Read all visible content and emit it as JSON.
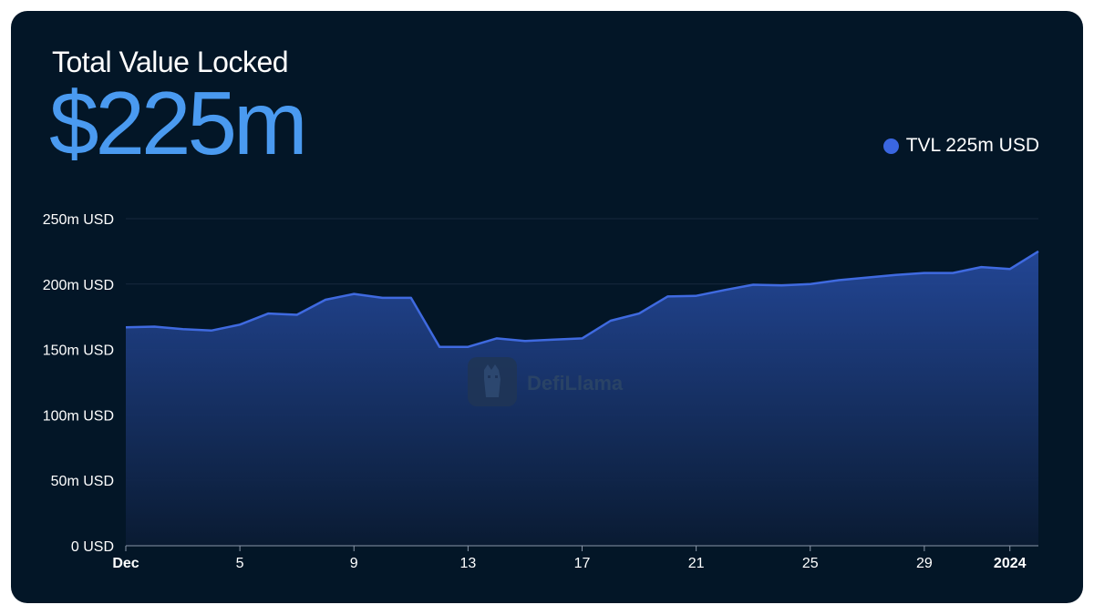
{
  "header": {
    "title": "Total Value Locked",
    "value": "$225m"
  },
  "legend": {
    "label": "TVL 225m USD",
    "color": "#3a66e0"
  },
  "watermark": {
    "text": "DefiLlama",
    "icon": "llama-logo-icon"
  },
  "colors": {
    "background": "#031627",
    "line": "#3f6ae0",
    "fill_top": "#24489a",
    "grid": "#17283e",
    "accent": "#4a9af0"
  },
  "chart_data": {
    "type": "area",
    "x": [
      "2023-12-01",
      "2023-12-02",
      "2023-12-03",
      "2023-12-04",
      "2023-12-05",
      "2023-12-06",
      "2023-12-07",
      "2023-12-08",
      "2023-12-09",
      "2023-12-10",
      "2023-12-11",
      "2023-12-12",
      "2023-12-13",
      "2023-12-14",
      "2023-12-15",
      "2023-12-16",
      "2023-12-17",
      "2023-12-18",
      "2023-12-19",
      "2023-12-20",
      "2023-12-21",
      "2023-12-22",
      "2023-12-23",
      "2023-12-24",
      "2023-12-25",
      "2023-12-26",
      "2023-12-27",
      "2023-12-28",
      "2023-12-29",
      "2023-12-30",
      "2023-12-31",
      "2024-01-01",
      "2024-01-02"
    ],
    "series": [
      {
        "name": "TVL",
        "unit": "m USD",
        "values": [
          167,
          167.5,
          165.5,
          164.5,
          169,
          177.5,
          176.5,
          188,
          192.5,
          189.5,
          189.5,
          152,
          152,
          158.5,
          156.5,
          157.5,
          158.5,
          172,
          177.5,
          190.5,
          191,
          195.5,
          199.5,
          199,
          200,
          203,
          205,
          207,
          208.5,
          208.5,
          213,
          211.5,
          225
        ]
      }
    ],
    "yticks": [
      {
        "value": 0,
        "label": "0 USD"
      },
      {
        "value": 50,
        "label": "50m USD"
      },
      {
        "value": 100,
        "label": "100m USD"
      },
      {
        "value": 150,
        "label": "150m USD"
      },
      {
        "value": 200,
        "label": "200m USD"
      },
      {
        "value": 250,
        "label": "250m USD"
      }
    ],
    "xticks": [
      {
        "date": "2023-12-01",
        "label": "Dec",
        "bold": true
      },
      {
        "date": "2023-12-05",
        "label": "5",
        "bold": false
      },
      {
        "date": "2023-12-09",
        "label": "9",
        "bold": false
      },
      {
        "date": "2023-12-13",
        "label": "13",
        "bold": false
      },
      {
        "date": "2023-12-17",
        "label": "17",
        "bold": false
      },
      {
        "date": "2023-12-21",
        "label": "21",
        "bold": false
      },
      {
        "date": "2023-12-25",
        "label": "25",
        "bold": false
      },
      {
        "date": "2023-12-29",
        "label": "29",
        "bold": false
      },
      {
        "date": "2024-01-01",
        "label": "2024",
        "bold": true
      }
    ],
    "ylim": [
      0,
      250
    ],
    "grid": true,
    "legend_position": "top-right"
  }
}
